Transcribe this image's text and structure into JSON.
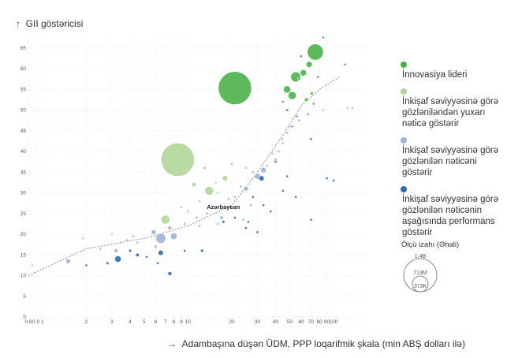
{
  "chart_data": {
    "type": "scatter",
    "ylabel": "GII göstəricisi",
    "xlabel": "Adambaşına düşən ÜDM, PPP loqarifmik şkala (min ABŞ dolları ilə)",
    "x_scale": "log",
    "xlim": [
      0.8,
      130
    ],
    "ylim": [
      0,
      68
    ],
    "x_ticks": [
      "0.8",
      "0.9",
      "1",
      "2",
      "3",
      "4",
      "5",
      "6",
      "7",
      "8",
      "9",
      "10",
      "20",
      "30",
      "40",
      "50",
      "60",
      "70",
      "80",
      "90",
      "100"
    ],
    "x_tick_values": [
      0.8,
      0.9,
      1,
      2,
      3,
      4,
      5,
      6,
      7,
      8,
      9,
      10,
      20,
      30,
      40,
      50,
      60,
      70,
      80,
      90,
      100
    ],
    "y_ticks": [
      0,
      5,
      10,
      15,
      20,
      25,
      30,
      35,
      40,
      45,
      50,
      55,
      60,
      65
    ],
    "grid": true,
    "annotation": {
      "text": "Azərbaycan",
      "x": 17.5,
      "y": 25.5
    },
    "trendline": [
      [
        0.8,
        10
      ],
      [
        2,
        16.5
      ],
      [
        5,
        19
      ],
      [
        10,
        22
      ],
      [
        20,
        27
      ],
      [
        30,
        35
      ],
      [
        45,
        44
      ],
      [
        60,
        51
      ],
      [
        80,
        55
      ],
      [
        110,
        58
      ]
    ],
    "series": [
      {
        "name": "İnnovasiya lideri",
        "color": "#4cb04a",
        "points": [
          {
            "x": 21,
            "y": 55.3,
            "pop": 1400
          },
          {
            "x": 75,
            "y": 64,
            "pop": 330
          },
          {
            "x": 68,
            "y": 61,
            "pop": 45
          },
          {
            "x": 55,
            "y": 58,
            "pop": 126
          },
          {
            "x": 62,
            "y": 59,
            "pop": 51
          },
          {
            "x": 48,
            "y": 55,
            "pop": 67
          },
          {
            "x": 52,
            "y": 53.5,
            "pop": 83
          },
          {
            "x": 58,
            "y": 57.5,
            "pop": 10
          },
          {
            "x": 65,
            "y": 52.5,
            "pop": 17
          },
          {
            "x": 85,
            "y": 67.5,
            "pop": 8
          },
          {
            "x": 60,
            "y": 63,
            "pop": 10
          },
          {
            "x": 78,
            "y": 58,
            "pop": 5
          },
          {
            "x": 45,
            "y": 52,
            "pop": 9
          },
          {
            "x": 56,
            "y": 48.5,
            "pop": 5
          },
          {
            "x": 73,
            "y": 51.5,
            "pop": 6
          },
          {
            "x": 67,
            "y": 49,
            "pop": 5
          },
          {
            "x": 48,
            "y": 50,
            "pop": 10
          },
          {
            "x": 120,
            "y": 61,
            "pop": 0.7
          },
          {
            "x": 71,
            "y": 54,
            "pop": 11
          }
        ]
      },
      {
        "name": "İnkişaf səviyyəsinə görə gözləniləndən yuxarı nəticə göstərir",
        "color": "#b2d69a",
        "points": [
          {
            "x": 8.5,
            "y": 38,
            "pop": 1420
          },
          {
            "x": 14,
            "y": 30.5,
            "pop": 100
          },
          {
            "x": 7,
            "y": 23.5,
            "pop": 100
          },
          {
            "x": 11,
            "y": 32,
            "pop": 27
          },
          {
            "x": 13,
            "y": 36,
            "pop": 14
          },
          {
            "x": 20,
            "y": 37,
            "pop": 11
          },
          {
            "x": 18,
            "y": 33.5,
            "pop": 37
          },
          {
            "x": 21,
            "y": 29,
            "pop": 10
          },
          {
            "x": 10,
            "y": 25.5,
            "pop": 6
          },
          {
            "x": 12,
            "y": 28,
            "pop": 5
          },
          {
            "x": 16,
            "y": 30,
            "pop": 4
          },
          {
            "x": 25,
            "y": 36,
            "pop": 5
          },
          {
            "x": 3,
            "y": 20,
            "pop": 3
          },
          {
            "x": 1.9,
            "y": 19,
            "pop": 3
          },
          {
            "x": 0.85,
            "y": 12.5,
            "pop": 2
          },
          {
            "x": 9,
            "y": 26.5,
            "pop": 3
          },
          {
            "x": 15.5,
            "y": 32.5,
            "pop": 2
          },
          {
            "x": 125,
            "y": 50.5,
            "pop": 0.6
          },
          {
            "x": 135,
            "y": 50.5,
            "pop": 0.5
          },
          {
            "x": 85,
            "y": 50,
            "pop": 0.8
          }
        ]
      },
      {
        "name": "İnkişaf səviyyəsinə görə gözlənilən nəticəni göstərir",
        "color": "#9db3d6",
        "points": [
          {
            "x": 6.5,
            "y": 19,
            "pop": 125
          },
          {
            "x": 8,
            "y": 19.5,
            "pop": 56
          },
          {
            "x": 5.8,
            "y": 20.5,
            "pop": 30
          },
          {
            "x": 7.5,
            "y": 21.5,
            "pop": 20
          },
          {
            "x": 25,
            "y": 31,
            "pop": 30
          },
          {
            "x": 30,
            "y": 34,
            "pop": 47
          },
          {
            "x": 33,
            "y": 35.5,
            "pop": 38
          },
          {
            "x": 40,
            "y": 38,
            "pop": 10
          },
          {
            "x": 42,
            "y": 40,
            "pop": 9
          },
          {
            "x": 45,
            "y": 42,
            "pop": 7
          },
          {
            "x": 52,
            "y": 46,
            "pop": 11
          },
          {
            "x": 58,
            "y": 47.5,
            "pop": 9
          },
          {
            "x": 28,
            "y": 35,
            "pop": 3
          },
          {
            "x": 35,
            "y": 36.5,
            "pop": 5
          },
          {
            "x": 38,
            "y": 39.5,
            "pop": 4
          },
          {
            "x": 19,
            "y": 28.5,
            "pop": 8
          },
          {
            "x": 23,
            "y": 31.5,
            "pop": 7
          },
          {
            "x": 3.2,
            "y": 16,
            "pop": 20
          },
          {
            "x": 1.5,
            "y": 13.5,
            "pop": 30
          },
          {
            "x": 3.8,
            "y": 18.5,
            "pop": 10
          },
          {
            "x": 4.5,
            "y": 18,
            "pop": 6
          },
          {
            "x": 6,
            "y": 17,
            "pop": 10
          },
          {
            "x": 2.5,
            "y": 16.5,
            "pop": 5
          },
          {
            "x": 17,
            "y": 24,
            "pop": 15
          },
          {
            "x": 13.5,
            "y": 25,
            "pop": 4
          },
          {
            "x": 20,
            "y": 26.5,
            "pop": 5
          },
          {
            "x": 27,
            "y": 27,
            "pop": 3
          },
          {
            "x": 11.5,
            "y": 24,
            "pop": 5
          },
          {
            "x": 12,
            "y": 22,
            "pop": 3
          },
          {
            "x": 44,
            "y": 43,
            "pop": 2.5
          },
          {
            "x": 50,
            "y": 46,
            "pop": 2
          },
          {
            "x": 48,
            "y": 44.5,
            "pop": 3
          },
          {
            "x": 24,
            "y": 23.5,
            "pop": 3
          },
          {
            "x": 4.2,
            "y": 19.5,
            "pop": 4
          },
          {
            "x": 9.5,
            "y": 22.5,
            "pop": 3
          },
          {
            "x": 16,
            "y": 22.5,
            "pop": 3
          }
        ]
      },
      {
        "name": "İnkişaf səviyyəsinə görə gözlənilən nəticənin aşağısında performans göstərir",
        "color": "#2e6aab",
        "points": [
          {
            "x": 3.3,
            "y": 14,
            "pop": 50
          },
          {
            "x": 6.5,
            "y": 15.5,
            "pop": 35
          },
          {
            "x": 7.5,
            "y": 10.5,
            "pop": 20
          },
          {
            "x": 4.5,
            "y": 15,
            "pop": 15
          },
          {
            "x": 2.8,
            "y": 13,
            "pop": 10
          },
          {
            "x": 4,
            "y": 16,
            "pop": 10
          },
          {
            "x": 12.5,
            "y": 16,
            "pop": 12
          },
          {
            "x": 32,
            "y": 33.5,
            "pop": 34
          },
          {
            "x": 40,
            "y": 37.5,
            "pop": 5
          },
          {
            "x": 48,
            "y": 34,
            "pop": 6
          },
          {
            "x": 21,
            "y": 24,
            "pop": 6
          },
          {
            "x": 17.5,
            "y": 23,
            "pop": 10
          },
          {
            "x": 26,
            "y": 23,
            "pop": 4
          },
          {
            "x": 70,
            "y": 43,
            "pop": 3
          },
          {
            "x": 28,
            "y": 29,
            "pop": 6
          },
          {
            "x": 25,
            "y": 21.5,
            "pop": 3
          },
          {
            "x": 33,
            "y": 27,
            "pop": 3
          },
          {
            "x": 37,
            "y": 25.5,
            "pop": 2
          },
          {
            "x": 45,
            "y": 30.5,
            "pop": 1.5
          },
          {
            "x": 55,
            "y": 29,
            "pop": 1
          },
          {
            "x": 90,
            "y": 33.5,
            "pop": 1.2
          },
          {
            "x": 100,
            "y": 33,
            "pop": 1
          },
          {
            "x": 70,
            "y": 23.5,
            "pop": 1
          },
          {
            "x": 30,
            "y": 20.5,
            "pop": 1.5
          },
          {
            "x": 9.5,
            "y": 16,
            "pop": 5
          },
          {
            "x": 6.2,
            "y": 13,
            "pop": 3
          },
          {
            "x": 2,
            "y": 12.5,
            "pop": 5
          },
          {
            "x": 5.2,
            "y": 14.5,
            "pop": 4
          }
        ]
      }
    ],
    "size_legend": {
      "title": "Ölçü izahı (Əhali)",
      "values": [
        "1.4B",
        "713M",
        "373K"
      ]
    }
  }
}
